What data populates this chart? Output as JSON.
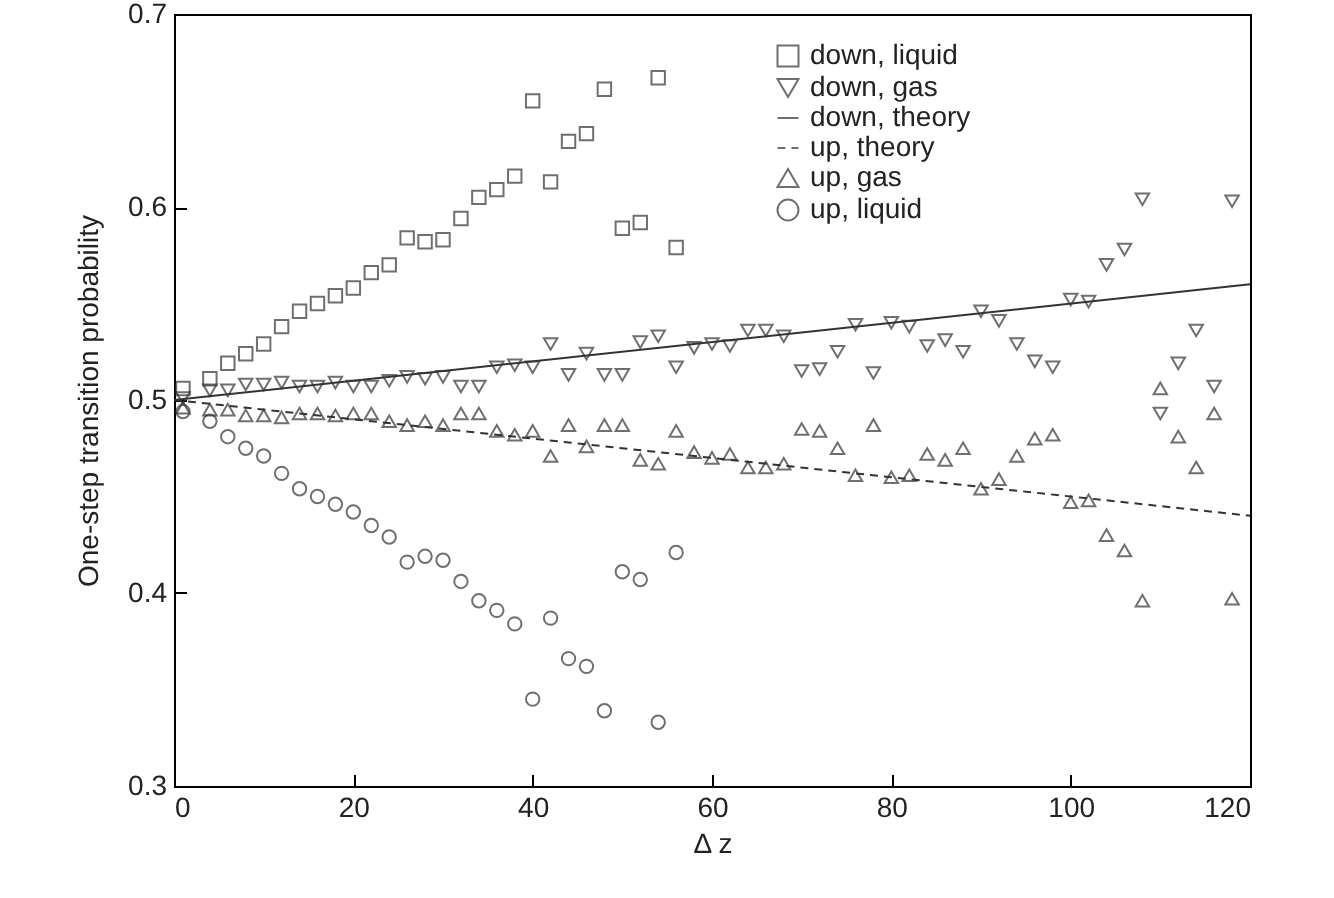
{
  "chart_data": {
    "type": "scatter",
    "xlabel": "Δ z",
    "ylabel": "One-step transition probability",
    "xlim": [
      0,
      120
    ],
    "ylim": [
      0.3,
      0.7
    ],
    "xticks": [
      0,
      20,
      40,
      60,
      80,
      100,
      120
    ],
    "yticks": [
      0.3,
      0.4,
      0.5,
      0.6,
      0.7
    ],
    "grid": false,
    "legend": "top right",
    "series": [
      {
        "name": "down, liquid",
        "marker": "square",
        "color": "#333333",
        "x": [
          1,
          4,
          6,
          8,
          10,
          12,
          14,
          16,
          18,
          20,
          22,
          24,
          26,
          28,
          30,
          32,
          34,
          36,
          38,
          40,
          42,
          44,
          46,
          48,
          50,
          52,
          54,
          56
        ],
        "values": [
          0.506,
          0.511,
          0.519,
          0.524,
          0.529,
          0.538,
          0.546,
          0.55,
          0.554,
          0.558,
          0.566,
          0.57,
          0.584,
          0.582,
          0.583,
          0.594,
          0.605,
          0.609,
          0.616,
          0.655,
          0.613,
          0.634,
          0.638,
          0.661,
          0.589,
          0.592,
          0.667,
          0.579
        ]
      },
      {
        "name": "down, gas",
        "marker": "triangle-down",
        "color": "#333333",
        "x": [
          1,
          4,
          6,
          8,
          10,
          12,
          14,
          16,
          18,
          20,
          22,
          24,
          26,
          28,
          30,
          32,
          34,
          36,
          38,
          40,
          42,
          44,
          46,
          48,
          50,
          52,
          54,
          56,
          58,
          60,
          62,
          64,
          66,
          68,
          70,
          72,
          74,
          76,
          78,
          80,
          82,
          84,
          86,
          88,
          90,
          92,
          94,
          96,
          98,
          100,
          102,
          104,
          106,
          108,
          110,
          112,
          114,
          116,
          118
        ],
        "values": [
          0.501,
          0.505,
          0.505,
          0.508,
          0.508,
          0.509,
          0.507,
          0.507,
          0.509,
          0.507,
          0.507,
          0.51,
          0.512,
          0.511,
          0.512,
          0.507,
          0.507,
          0.517,
          0.518,
          0.517,
          0.529,
          0.513,
          0.524,
          0.513,
          0.513,
          0.53,
          0.533,
          0.517,
          0.527,
          0.529,
          0.528,
          0.536,
          0.536,
          0.533,
          0.515,
          0.516,
          0.525,
          0.539,
          0.514,
          0.54,
          0.538,
          0.528,
          0.531,
          0.525,
          0.546,
          0.541,
          0.529,
          0.52,
          0.517,
          0.552,
          0.551,
          0.57,
          0.578,
          0.604,
          0.493,
          0.519,
          0.536,
          0.507,
          0.603
        ]
      },
      {
        "name": "down, theory",
        "type": "line",
        "line_style": "solid",
        "color": "#333333",
        "x": [
          0,
          120
        ],
        "values": [
          0.5,
          0.56
        ]
      },
      {
        "name": "up, theory",
        "type": "line",
        "line_style": "dashed",
        "color": "#333333",
        "x": [
          0,
          120
        ],
        "values": [
          0.5,
          0.44
        ]
      },
      {
        "name": "up, gas",
        "marker": "triangle",
        "color": "#333333",
        "x": [
          1,
          4,
          6,
          8,
          10,
          12,
          14,
          16,
          18,
          20,
          22,
          24,
          26,
          28,
          30,
          32,
          34,
          36,
          38,
          40,
          42,
          44,
          46,
          48,
          50,
          52,
          54,
          56,
          58,
          60,
          62,
          64,
          66,
          68,
          70,
          72,
          74,
          76,
          78,
          80,
          82,
          84,
          86,
          88,
          90,
          92,
          94,
          96,
          98,
          100,
          102,
          104,
          106,
          108,
          110,
          112,
          114,
          116,
          118
        ],
        "values": [
          0.496,
          0.495,
          0.495,
          0.492,
          0.492,
          0.491,
          0.493,
          0.493,
          0.492,
          0.493,
          0.493,
          0.489,
          0.487,
          0.489,
          0.487,
          0.493,
          0.493,
          0.484,
          0.482,
          0.484,
          0.471,
          0.487,
          0.476,
          0.487,
          0.487,
          0.469,
          0.467,
          0.484,
          0.473,
          0.47,
          0.472,
          0.465,
          0.465,
          0.467,
          0.485,
          0.484,
          0.475,
          0.461,
          0.487,
          0.46,
          0.461,
          0.472,
          0.469,
          0.475,
          0.454,
          0.459,
          0.471,
          0.48,
          0.482,
          0.447,
          0.448,
          0.43,
          0.422,
          0.396,
          0.506,
          0.481,
          0.465,
          0.493,
          0.397
        ]
      },
      {
        "name": "up, liquid",
        "marker": "circle",
        "color": "#333333",
        "x": [
          1,
          4,
          6,
          8,
          10,
          12,
          14,
          16,
          18,
          20,
          22,
          24,
          26,
          28,
          30,
          32,
          34,
          36,
          38,
          40,
          42,
          44,
          46,
          48,
          50,
          52,
          54,
          56
        ],
        "values": [
          0.494,
          0.489,
          0.481,
          0.475,
          0.471,
          0.462,
          0.454,
          0.45,
          0.446,
          0.442,
          0.435,
          0.429,
          0.416,
          0.419,
          0.417,
          0.406,
          0.396,
          0.391,
          0.384,
          0.345,
          0.387,
          0.366,
          0.362,
          0.339,
          0.411,
          0.407,
          0.333,
          0.421
        ]
      }
    ]
  }
}
